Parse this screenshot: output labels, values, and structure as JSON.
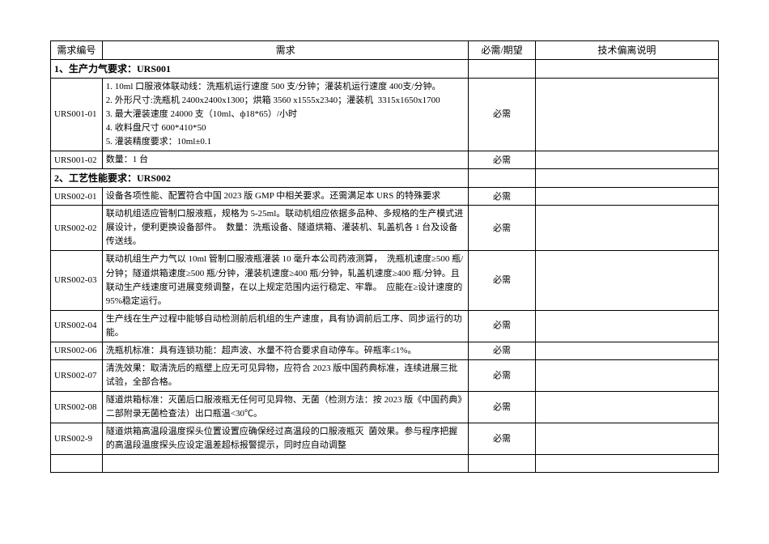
{
  "header": {
    "col_id": "需求编号",
    "col_req": "需求",
    "col_need": "必需/期望",
    "col_dev": "技术偏离说明"
  },
  "sections": {
    "s1_title": "1、生产力气要求：URS001",
    "s2_title": "2、工艺性能要求：URS002"
  },
  "rows": {
    "urs001_01": {
      "id": "URS001-01",
      "req": "1. 10ml 口服液体联动线：洗瓶机运行速度 500 支/分钟；灌装机运行速度 400支/分钟。\n2. 外形尺寸:洗瓶机 2400x2400x1300；烘箱 3560 x1555x2340；灌装机  3315x1650x1700\n3. 最大灌装速度 24000 支（10ml、ф18*65）/小时\n4. 收料盘尺寸 600*410*50\n5. 灌装精度要求：10ml±0.1",
      "need": "必需"
    },
    "urs001_02": {
      "id": "URS001-02",
      "req": "数量：1 台",
      "need": "必需"
    },
    "urs002_01": {
      "id": "URS002-01",
      "req": "设备各项性能、配置符合中国 2023 版 GMP 中相关要求。还需满足本 URS 的特殊要求",
      "need": "必需"
    },
    "urs002_02": {
      "id": "URS002-02",
      "req": "联动机组适应管制口服液瓶，规格为 5-25ml。联动机组应依据多品种、多规格的生产模式进展设计，便利更换设备部件。  数量：洗瓶设备、隧道烘箱、灌装机、轧盖机各 1 台及设备传送线。",
      "need": "必需"
    },
    "urs002_03": {
      "id": "URS002-03",
      "req": "联动机组生产力气以 10ml 管制口服液瓶灌装 10 毫升本公司药液测算，  洗瓶机速度≥500 瓶/分钟；隧道烘箱速度≥500 瓶/分钟，灌装机速度≥400 瓶/分钟，轧盖机速度≥400 瓶/分钟。且联动生产线速度可进展变频调整，在以上规定范围内运行稳定、牢靠。  应能在≥设计速度的 95%稳定运行。",
      "need": "必需"
    },
    "urs002_04": {
      "id": "URS002-04",
      "req": "生产线在生产过程中能够自动检测前后机组的生产速度，具有协调前后工序、同步运行的功能。",
      "need": "必需"
    },
    "urs002_06": {
      "id": "URS002-06",
      "req": "洗瓶机标准：具有连锁功能：超声波、水量不符合要求自动停车。碎瓶率≤1%。",
      "need": "必需"
    },
    "urs002_07": {
      "id": "URS002-07",
      "req": "清洗效果：取清洗后的瓶壁上应无可见异物，应符合 2023 版中国药典标准，连续进展三批试验，全部合格。",
      "need": "必需"
    },
    "urs002_08": {
      "id": "URS002-08",
      "req": "隧道烘箱标准：灭菌后口服液瓶无任何可见异物、无菌（检测方法：按 2023 版《中国药典》二部附录无菌检查法）出口瓶温<30℃。",
      "need": "必需"
    },
    "urs002_9": {
      "id": "URS002-9",
      "req": "隧道烘箱高温段温度探头位置设置应确保经过高温段的口服液瓶灭  菌效果。参与程序把握的高温段温度探头应设定温差超标报警提示，同时应自动调整",
      "need": "必需"
    }
  }
}
